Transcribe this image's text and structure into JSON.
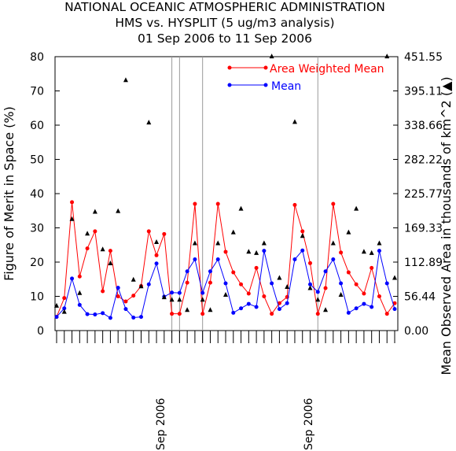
{
  "chart_data": {
    "type": "line",
    "title": [
      "NATIONAL OCEANIC ATMOSPHERIC ADMINISTRATION",
      "HMS vs. HYSPLIT (5 ug/m3 analysis)",
      "01 Sep 2006 to 11 Sep 2006"
    ],
    "ylabel_left": "Figure of Merit in Space (%)",
    "ylabel_right": "Mean Observed Area in thousands of km^2 (▲)",
    "ylim_left": [
      0,
      80
    ],
    "yticks_left": [
      "0",
      "10",
      "20",
      "30",
      "40",
      "50",
      "60",
      "70",
      "80"
    ],
    "ylim_right": [
      0,
      451.55
    ],
    "yticks_right": [
      "0.00",
      "56.44",
      "112.89",
      "169.33",
      "225.77",
      "282.22",
      "338.66",
      "395.11",
      "451.55"
    ],
    "xlabels": [
      "Sep 2006",
      "Sep 2006"
    ],
    "legend_position": "top-right",
    "series": [
      {
        "name": "Area Weighted Mean",
        "color": "#ff0000",
        "values": [
          4,
          9.5,
          37.5,
          15.8,
          24,
          29,
          11.5,
          23.3,
          10,
          8.5,
          10.2,
          13,
          29,
          22,
          28.2,
          4.9,
          4.9,
          14,
          37,
          4.9,
          14,
          37,
          23,
          17,
          13.5,
          10.8,
          18.3,
          10,
          4.9,
          8,
          9.8,
          36.7,
          29,
          19.7,
          4.9,
          12.4,
          37,
          22.8,
          17,
          13.5,
          10.8,
          18.3,
          10,
          4.9,
          8
        ]
      },
      {
        "name": "Mean",
        "color": "#0000ff",
        "values": [
          4,
          6.5,
          15.2,
          7.5,
          4.8,
          4.7,
          5.1,
          3.7,
          12.5,
          6.3,
          3.8,
          4,
          13.5,
          19.6,
          9.9,
          11.1,
          11,
          17.3,
          20.8,
          11,
          17.3,
          20.8,
          13.8,
          5.2,
          6.5,
          7.8,
          6.9,
          23.3,
          13.8,
          6.3,
          8,
          20.8,
          23.4,
          13.5,
          11.3,
          17.3,
          20.8,
          13.8,
          5.2,
          6.5,
          7.8,
          6.9,
          23.3,
          13.8,
          6.3
        ]
      },
      {
        "name": "Mean Observed Area",
        "color": "#000000",
        "values": [
          41,
          31,
          184,
          62,
          160,
          196,
          134,
          111,
          197,
          413,
          84,
          73,
          343,
          146,
          55,
          51,
          51,
          34,
          144,
          51,
          34,
          144,
          59,
          162,
          201,
          130,
          128,
          144,
          452,
          87,
          72,
          344,
          156,
          70,
          51,
          34,
          144,
          59,
          162,
          201,
          130,
          128,
          144,
          452,
          87
        ]
      }
    ],
    "vlines": [
      15,
      16,
      19,
      34
    ]
  }
}
